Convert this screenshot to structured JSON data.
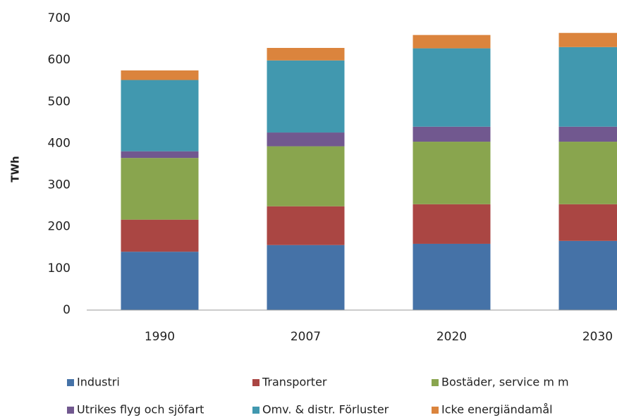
{
  "chart_data": {
    "type": "stacked_bar",
    "y_label": "TWh",
    "categories": [
      "1990",
      "2007",
      "2020",
      "2030"
    ],
    "series": [
      {
        "name": "Industri",
        "color": "#4572a7",
        "values": [
          140,
          156,
          159,
          166
        ]
      },
      {
        "name": "Transporter",
        "color": "#aa4643",
        "values": [
          77,
          93,
          95,
          88
        ]
      },
      {
        "name": "Bostäder, service m m",
        "color": "#89a54e",
        "values": [
          148,
          144,
          150,
          150
        ]
      },
      {
        "name": "Utrikes flyg och sjöfart",
        "color": "#71588f",
        "values": [
          16,
          33,
          36,
          36
        ]
      },
      {
        "name": "Omv. & distr. Förluster",
        "color": "#4198af",
        "values": [
          171,
          173,
          188,
          191
        ]
      },
      {
        "name": "Icke energiändamål",
        "color": "#db843d",
        "values": [
          23,
          30,
          32,
          34
        ]
      }
    ],
    "ylim": [
      0,
      700
    ],
    "yticks": [
      0,
      100,
      200,
      300,
      400,
      500,
      600,
      700
    ],
    "grid": false,
    "legend": "bottom"
  }
}
